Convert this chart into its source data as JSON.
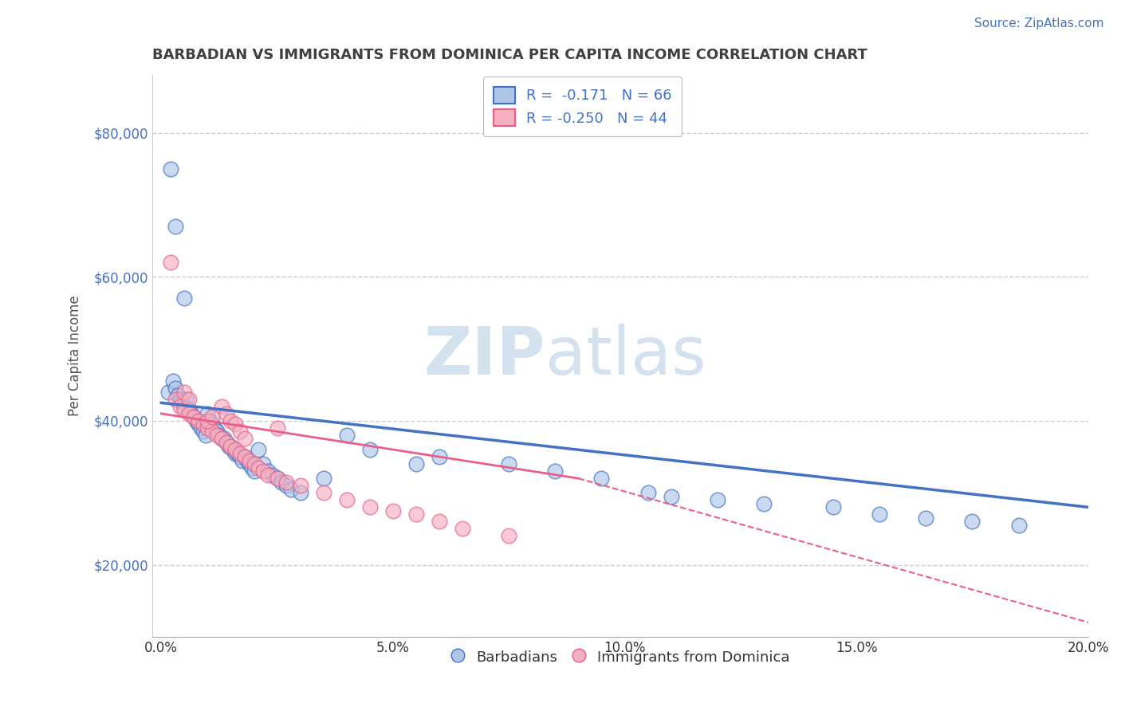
{
  "title": "BARBADIAN VS IMMIGRANTS FROM DOMINICA PER CAPITA INCOME CORRELATION CHART",
  "source": "Source: ZipAtlas.com",
  "xlabel_vals": [
    0.0,
    5.0,
    10.0,
    15.0,
    20.0
  ],
  "ylabel": "Per Capita Income",
  "ylim": [
    10000,
    88000
  ],
  "xlim": [
    -0.2,
    20.0
  ],
  "yticks": [
    20000,
    40000,
    60000,
    80000
  ],
  "ytick_labels": [
    "$20,000",
    "$40,000",
    "$60,000",
    "$80,000"
  ],
  "barbadian_R": -0.171,
  "barbadian_N": 66,
  "dominica_R": -0.25,
  "dominica_N": 44,
  "barbadian_color": "#adc6e8",
  "dominica_color": "#f5afc0",
  "trend_blue": "#4472c4",
  "trend_pink": "#e8608a",
  "watermark": "ZIPatlas",
  "watermark_color": "#cddded",
  "background_color": "#ffffff",
  "grid_color": "#cccccc",
  "title_color": "#404040",
  "source_color": "#4472c4",
  "legend_text_color": "#4472c4",
  "barbadian_x": [
    0.15,
    0.25,
    0.3,
    0.35,
    0.4,
    0.45,
    0.5,
    0.55,
    0.6,
    0.65,
    0.7,
    0.75,
    0.8,
    0.85,
    0.9,
    0.95,
    1.0,
    1.05,
    1.1,
    1.15,
    1.2,
    1.25,
    1.3,
    1.35,
    1.4,
    1.45,
    1.5,
    1.55,
    1.6,
    1.65,
    1.7,
    1.75,
    1.8,
    1.85,
    1.9,
    1.95,
    2.0,
    2.1,
    2.2,
    2.3,
    2.4,
    2.5,
    2.6,
    2.7,
    2.8,
    3.0,
    3.5,
    4.0,
    4.5,
    5.5,
    6.0,
    7.5,
    8.5,
    9.5,
    10.5,
    11.0,
    12.0,
    13.0,
    14.5,
    15.5,
    16.5,
    17.5,
    18.5,
    0.2,
    0.3,
    0.5
  ],
  "barbadian_y": [
    44000,
    45500,
    44500,
    43500,
    43000,
    42500,
    42000,
    43000,
    41500,
    41000,
    40500,
    40000,
    39500,
    39000,
    38500,
    38000,
    41000,
    40000,
    39500,
    39000,
    38500,
    38000,
    37500,
    37500,
    37000,
    36500,
    36500,
    36000,
    35500,
    35500,
    35000,
    34500,
    35000,
    34500,
    34000,
    33500,
    33000,
    36000,
    34000,
    33000,
    32500,
    32000,
    31500,
    31000,
    30500,
    30000,
    32000,
    38000,
    36000,
    34000,
    35000,
    34000,
    33000,
    32000,
    30000,
    29500,
    29000,
    28500,
    28000,
    27000,
    26500,
    26000,
    25500,
    75000,
    67000,
    57000
  ],
  "dominica_x": [
    0.3,
    0.4,
    0.5,
    0.6,
    0.7,
    0.8,
    0.9,
    1.0,
    1.1,
    1.2,
    1.3,
    1.4,
    1.5,
    1.6,
    1.7,
    1.8,
    1.9,
    2.0,
    2.1,
    2.2,
    2.3,
    2.5,
    2.7,
    3.0,
    3.5,
    4.0,
    4.5,
    5.0,
    5.5,
    6.0,
    6.5,
    7.5,
    2.5,
    1.3,
    1.4,
    1.5,
    1.6,
    1.7,
    1.8,
    0.5,
    0.6,
    0.2,
    1.0,
    1.1
  ],
  "dominica_y": [
    43000,
    42000,
    41500,
    41000,
    40500,
    40000,
    39500,
    39000,
    38500,
    38000,
    37500,
    37000,
    36500,
    36000,
    35500,
    35000,
    34500,
    34000,
    33500,
    33000,
    32500,
    32000,
    31500,
    31000,
    30000,
    29000,
    28000,
    27500,
    27000,
    26000,
    25000,
    24000,
    39000,
    42000,
    41000,
    40000,
    39500,
    38500,
    37500,
    44000,
    43000,
    62000,
    40000,
    40500
  ],
  "blue_trend_x0": 0.0,
  "blue_trend_y0": 42500,
  "blue_trend_x1": 20.0,
  "blue_trend_y1": 28000,
  "pink_trend_x0": 0.0,
  "pink_trend_y0": 41000,
  "pink_trend_x1": 9.0,
  "pink_trend_y1": 32000,
  "pink_dash_x0": 9.0,
  "pink_dash_y0": 32000,
  "pink_dash_x1": 20.0,
  "pink_dash_y1": 12000
}
